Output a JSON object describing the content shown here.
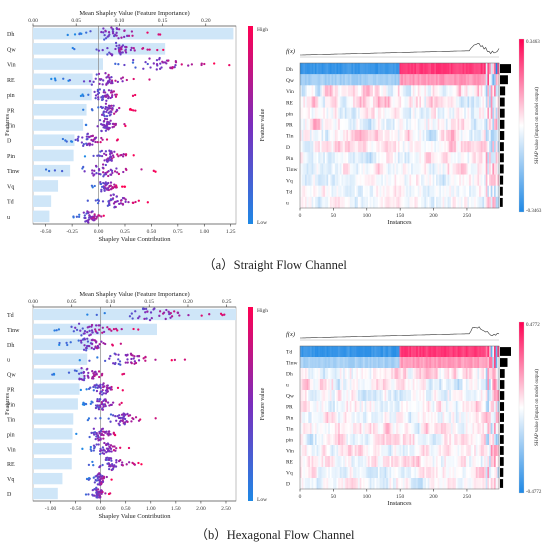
{
  "captions": {
    "a": "（a）Straight Flow Channel",
    "b": "（b）Hexagonal Flow Channel"
  },
  "colors": {
    "low": "#1e88e5",
    "mid": "#7b2dbd",
    "high": "#ff0052",
    "bar": "#cfe6f8"
  },
  "chart_data": [
    {
      "id": "a-beeswarm",
      "type": "scatter",
      "top_axis_label": "Mean Shapley Value (Feature Importance)",
      "top_ticks": [
        0.0,
        0.05,
        0.1,
        0.15,
        0.2
      ],
      "top_lim": [
        0.0,
        0.235
      ],
      "xlabel": "Shapley Value Contribution",
      "x_ticks": [
        -0.5,
        -0.25,
        0.0,
        0.25,
        0.5,
        0.75,
        1.0,
        1.25
      ],
      "xlim": [
        -0.62,
        1.3
      ],
      "ylabel": "Features",
      "colorbar": {
        "label": "Feature value",
        "high": "High",
        "low": "Low"
      },
      "features": [
        "Dh",
        "Qw",
        "Vin",
        "RE",
        "pin",
        "PR",
        "Tin",
        "D",
        "Pin",
        "Tinw",
        "Vq",
        "Td",
        "u"
      ],
      "mean_abs_shap": [
        0.232,
        0.153,
        0.081,
        0.069,
        0.068,
        0.062,
        0.058,
        0.048,
        0.047,
        0.043,
        0.029,
        0.021,
        0.019
      ],
      "shap_range": [
        [
          -0.3,
          0.6
        ],
        [
          -0.25,
          0.65
        ],
        [
          -0.1,
          1.25
        ],
        [
          -0.45,
          0.6
        ],
        [
          -0.2,
          0.35
        ],
        [
          -0.15,
          0.35
        ],
        [
          -0.15,
          0.3
        ],
        [
          -0.35,
          0.2
        ],
        [
          -0.15,
          0.35
        ],
        [
          -0.5,
          0.6
        ],
        [
          -0.1,
          0.25
        ],
        [
          -0.15,
          0.5
        ],
        [
          -0.25,
          0.1
        ]
      ]
    },
    {
      "id": "a-heatmap",
      "type": "heatmap",
      "fx_label": "f(x)",
      "xlabel": "Instances",
      "x_ticks": [
        0,
        50,
        100,
        150,
        200,
        250
      ],
      "xlim": [
        0,
        298
      ],
      "rows": [
        "Dh",
        "Qw",
        "Vin",
        "RE",
        "pin",
        "PR",
        "Tin",
        "D",
        "Pin",
        "Tinw",
        "Vq",
        "Td",
        "u"
      ],
      "colorbar": {
        "label": "SHAP value (impact on model output)",
        "max": "0.3463",
        "min": "-0.3463"
      },
      "importance": [
        0.232,
        0.153,
        0.081,
        0.069,
        0.068,
        0.062,
        0.058,
        0.048,
        0.047,
        0.043,
        0.029,
        0.021,
        0.019
      ]
    },
    {
      "id": "b-beeswarm",
      "type": "scatter",
      "top_axis_label": "Mean Shapley Value (Feature Importance)",
      "top_ticks": [
        0.0,
        0.05,
        0.1,
        0.15,
        0.2,
        0.25
      ],
      "top_lim": [
        0.0,
        0.262
      ],
      "xlabel": "Shapley Value Contribution",
      "x_ticks": [
        -1.0,
        -0.5,
        0.0,
        0.5,
        1.0,
        1.5,
        2.0,
        2.5
      ],
      "xlim": [
        -1.35,
        2.7
      ],
      "ylabel": "Features",
      "colorbar": {
        "label": "Feature value",
        "high": "High",
        "low": "Low"
      },
      "features": [
        "Td",
        "Tinw",
        "Dh",
        "u",
        "Qw",
        "PR",
        "Pin",
        "Tin",
        "pin",
        "Vin",
        "RE",
        "Vq",
        "D"
      ],
      "mean_abs_shap": [
        0.262,
        0.16,
        0.078,
        0.07,
        0.066,
        0.06,
        0.058,
        0.052,
        0.051,
        0.05,
        0.05,
        0.038,
        0.032
      ],
      "shap_range": [
        [
          -0.4,
          2.6
        ],
        [
          -1.2,
          0.8
        ],
        [
          -0.9,
          0.5
        ],
        [
          -0.6,
          1.7
        ],
        [
          -1.0,
          0.5
        ],
        [
          -0.4,
          0.5
        ],
        [
          -0.4,
          0.5
        ],
        [
          -0.3,
          1.2
        ],
        [
          -0.5,
          0.5
        ],
        [
          -0.4,
          0.6
        ],
        [
          -0.4,
          0.9
        ],
        [
          -0.3,
          0.3
        ],
        [
          -0.3,
          0.2
        ]
      ]
    },
    {
      "id": "b-heatmap",
      "type": "heatmap",
      "fx_label": "f(x)",
      "xlabel": "Instances",
      "x_ticks": [
        0,
        50,
        100,
        150,
        200,
        250
      ],
      "xlim": [
        0,
        298
      ],
      "rows": [
        "Td",
        "Tinw",
        "Dh",
        "u",
        "Qw",
        "PR",
        "Pin",
        "Tin",
        "pin",
        "Vin",
        "RE",
        "Vq",
        "D"
      ],
      "colorbar": {
        "label": "SHAP value (impact on model output)",
        "max": "0.4772",
        "min": "-0.4772"
      },
      "importance": [
        0.262,
        0.16,
        0.078,
        0.07,
        0.066,
        0.06,
        0.058,
        0.052,
        0.051,
        0.05,
        0.05,
        0.038,
        0.032
      ]
    }
  ]
}
